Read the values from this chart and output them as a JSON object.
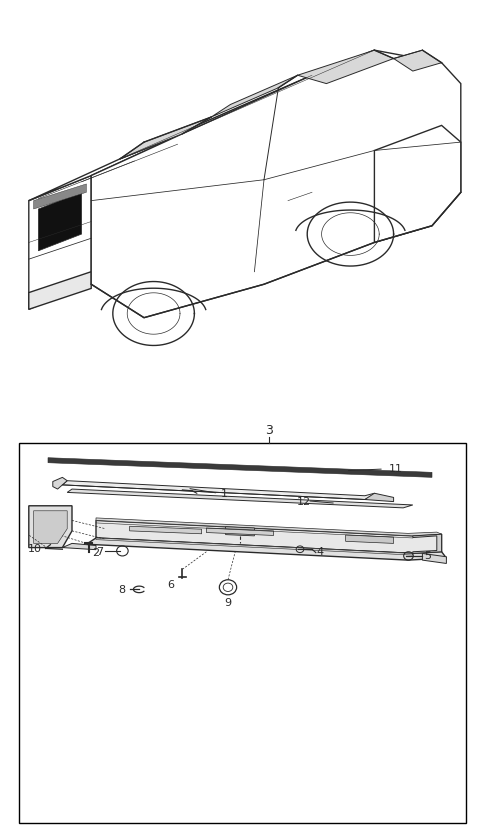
{
  "bg_color": "#ffffff",
  "line_color": "#2a2a2a",
  "fig_width": 4.8,
  "fig_height": 8.36,
  "dpi": 100
}
